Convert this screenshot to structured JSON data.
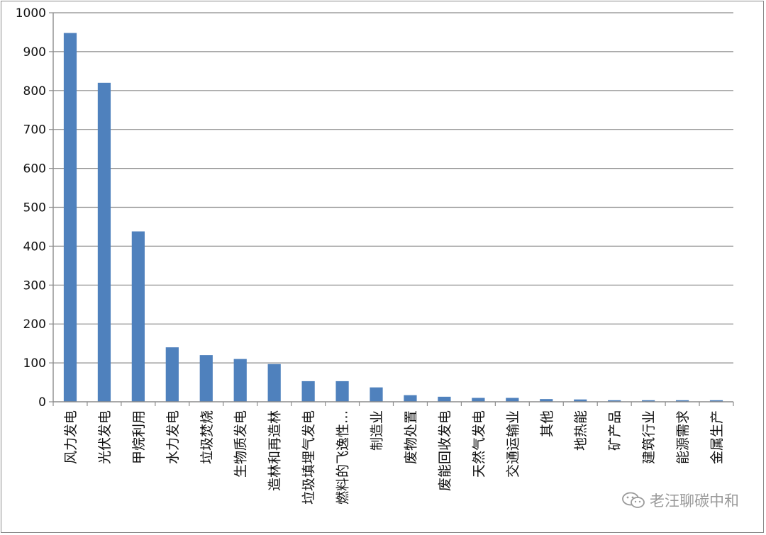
{
  "chart_data": {
    "type": "bar",
    "categories": [
      "风力发电",
      "光伏发电",
      "甲烷利用",
      "水力发电",
      "垃圾焚烧",
      "生物质发电",
      "造林和再造林",
      "垃圾填埋气发电",
      "燃料的飞逸性…",
      "制造业",
      "废物处置",
      "废能回收发电",
      "天然气发电",
      "交通运输业",
      "其他",
      "地热能",
      "矿产品",
      "建筑行业",
      "能源需求",
      "金属生产"
    ],
    "values": [
      948,
      820,
      438,
      140,
      120,
      110,
      97,
      53,
      53,
      37,
      17,
      13,
      10,
      10,
      7,
      6,
      4,
      4,
      4,
      4
    ],
    "title": "",
    "xlabel": "",
    "ylabel": "",
    "ylim": [
      0,
      1000
    ],
    "yticks": [
      0,
      100,
      200,
      300,
      400,
      500,
      600,
      700,
      800,
      900,
      1000
    ],
    "grid": true,
    "legend": "none",
    "bar_color": "#4F81BD"
  },
  "watermark": {
    "text": "老汪聊碳中和",
    "icon": "wechat-icon"
  }
}
